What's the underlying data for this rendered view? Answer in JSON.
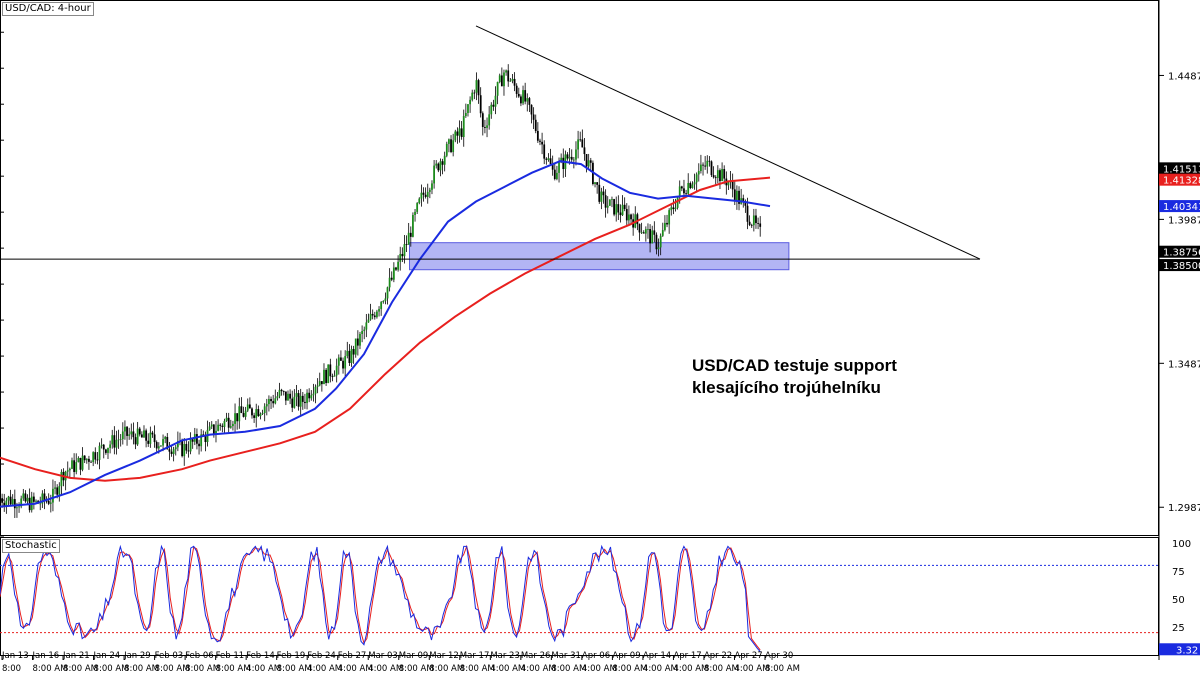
{
  "chart_data": {
    "type": "candlestick",
    "symbol_label": "USD/CAD: 4-hour",
    "annotation": [
      "USD/CAD testuje support",
      "klesajícího trojúhelníku"
    ],
    "price_axis": {
      "ticks": [
        "1.44879",
        "1.39879",
        "1.34879",
        "1.29879"
      ],
      "ylim": [
        1.2888,
        1.475
      ]
    },
    "price_badges": [
      {
        "label": "1.41513",
        "value": 1.41513,
        "color": "#000000"
      },
      {
        "label": "1.41328",
        "value": 1.41328,
        "color": "#e8201e"
      },
      {
        "label": "1.40341",
        "value": 1.40341,
        "color": "#1a2be0"
      },
      {
        "label": "1.38756",
        "value": 1.38756,
        "color": "#000000"
      },
      {
        "label": "1.38500",
        "value": 1.385,
        "color": "#000000"
      }
    ],
    "x_labels": [
      "Jan 13",
      "Jan 16",
      "Jan 21",
      "Jan 24",
      "Jan 29",
      "Feb 03",
      "Feb 06",
      "Feb 11",
      "Feb 14",
      "Feb 19",
      "Feb 24",
      "Feb 27",
      "Mar 03",
      "Mar 09",
      "Mar 12",
      "Mar 17",
      "Mar 23",
      "Mar 26",
      "Mar 31",
      "Apr 06",
      "Apr 09",
      "Apr 14",
      "Apr 17",
      "Apr 22",
      "Apr 27",
      "Apr 30"
    ],
    "x_sublabels": [
      "8:00",
      "8:00 AM",
      "8:00 AM",
      "8:00 AM",
      "8:00 AM",
      "8:00 AM",
      "8:00 AM",
      "8:00 AM",
      "4:00 AM",
      "8:00 AM",
      "4:00 AM",
      "4:00 AM",
      "4:00 AM",
      "8:00 AM",
      "8:00 AM",
      "8:00 AM",
      "4:00 AM",
      "4:00 AM",
      "8:00 AM",
      "4:00 AM",
      "8:00 AM",
      "4:00 AM",
      "4:00 AM",
      "8:00 AM",
      "4:00 AM",
      "8:00 AM"
    ],
    "close_path": [
      [
        0,
        1.302
      ],
      [
        0.05,
        1.3
      ],
      [
        0.075,
        1.302
      ],
      [
        0.09,
        1.311
      ],
      [
        0.12,
        1.315
      ],
      [
        0.15,
        1.32
      ],
      [
        0.18,
        1.324
      ],
      [
        0.22,
        1.322
      ],
      [
        0.26,
        1.319
      ],
      [
        0.29,
        1.323
      ],
      [
        0.33,
        1.33
      ],
      [
        0.37,
        1.333
      ],
      [
        0.4,
        1.338
      ],
      [
        0.43,
        1.335
      ],
      [
        0.45,
        1.342
      ],
      [
        0.5,
        1.351
      ],
      [
        0.52,
        1.36
      ],
      [
        0.56,
        1.378
      ],
      [
        0.58,
        1.39
      ],
      [
        0.6,
        1.405
      ],
      [
        0.63,
        1.42
      ],
      [
        0.66,
        1.43
      ],
      [
        0.68,
        1.447
      ],
      [
        0.69,
        1.43
      ],
      [
        0.72,
        1.45
      ],
      [
        0.75,
        1.44
      ],
      [
        0.79,
        1.415
      ],
      [
        0.83,
        1.425
      ],
      [
        0.86,
        1.405
      ],
      [
        0.9,
        1.4
      ],
      [
        0.94,
        1.39
      ],
      [
        0.97,
        1.408
      ],
      [
        1.01,
        1.418
      ],
      [
        1.04,
        1.412
      ],
      [
        1.07,
        1.4
      ],
      [
        1.1,
        1.388
      ]
    ],
    "ma_blue": [
      [
        0,
        1.299
      ],
      [
        0.05,
        1.3
      ],
      [
        0.1,
        1.304
      ],
      [
        0.15,
        1.31
      ],
      [
        0.2,
        1.315
      ],
      [
        0.26,
        1.322
      ],
      [
        0.3,
        1.324
      ],
      [
        0.35,
        1.325
      ],
      [
        0.4,
        1.327
      ],
      [
        0.45,
        1.333
      ],
      [
        0.48,
        1.34
      ],
      [
        0.52,
        1.352
      ],
      [
        0.56,
        1.37
      ],
      [
        0.6,
        1.385
      ],
      [
        0.64,
        1.398
      ],
      [
        0.68,
        1.405
      ],
      [
        0.72,
        1.41
      ],
      [
        0.76,
        1.415
      ],
      [
        0.8,
        1.419
      ],
      [
        0.83,
        1.418
      ],
      [
        0.86,
        1.413
      ],
      [
        0.9,
        1.408
      ],
      [
        0.94,
        1.406
      ],
      [
        0.98,
        1.407
      ],
      [
        1.02,
        1.406
      ],
      [
        1.06,
        1.405
      ],
      [
        1.1,
        1.4034
      ]
    ],
    "ma_red": [
      [
        0,
        1.316
      ],
      [
        0.05,
        1.312
      ],
      [
        0.1,
        1.309
      ],
      [
        0.15,
        1.308
      ],
      [
        0.2,
        1.309
      ],
      [
        0.26,
        1.312
      ],
      [
        0.3,
        1.315
      ],
      [
        0.35,
        1.318
      ],
      [
        0.4,
        1.321
      ],
      [
        0.45,
        1.325
      ],
      [
        0.5,
        1.333
      ],
      [
        0.55,
        1.345
      ],
      [
        0.6,
        1.356
      ],
      [
        0.65,
        1.365
      ],
      [
        0.7,
        1.373
      ],
      [
        0.75,
        1.38
      ],
      [
        0.8,
        1.386
      ],
      [
        0.85,
        1.392
      ],
      [
        0.9,
        1.397
      ],
      [
        0.95,
        1.403
      ],
      [
        1.0,
        1.409
      ],
      [
        1.04,
        1.412
      ],
      [
        1.1,
        1.4133
      ]
    ],
    "trendline": {
      "from": [
        0.68,
        1.466
      ],
      "to": [
        1.4,
        1.385
      ]
    },
    "support_line": 1.385,
    "support_zone": [
      1.382,
      1.39
    ],
    "stochastic": {
      "label": "Stochastic",
      "ticks": [
        "100",
        "75",
        "50",
        "25"
      ],
      "levels": [
        80,
        20
      ],
      "last_value_label": "3.32",
      "ylim": [
        0,
        100
      ]
    }
  }
}
